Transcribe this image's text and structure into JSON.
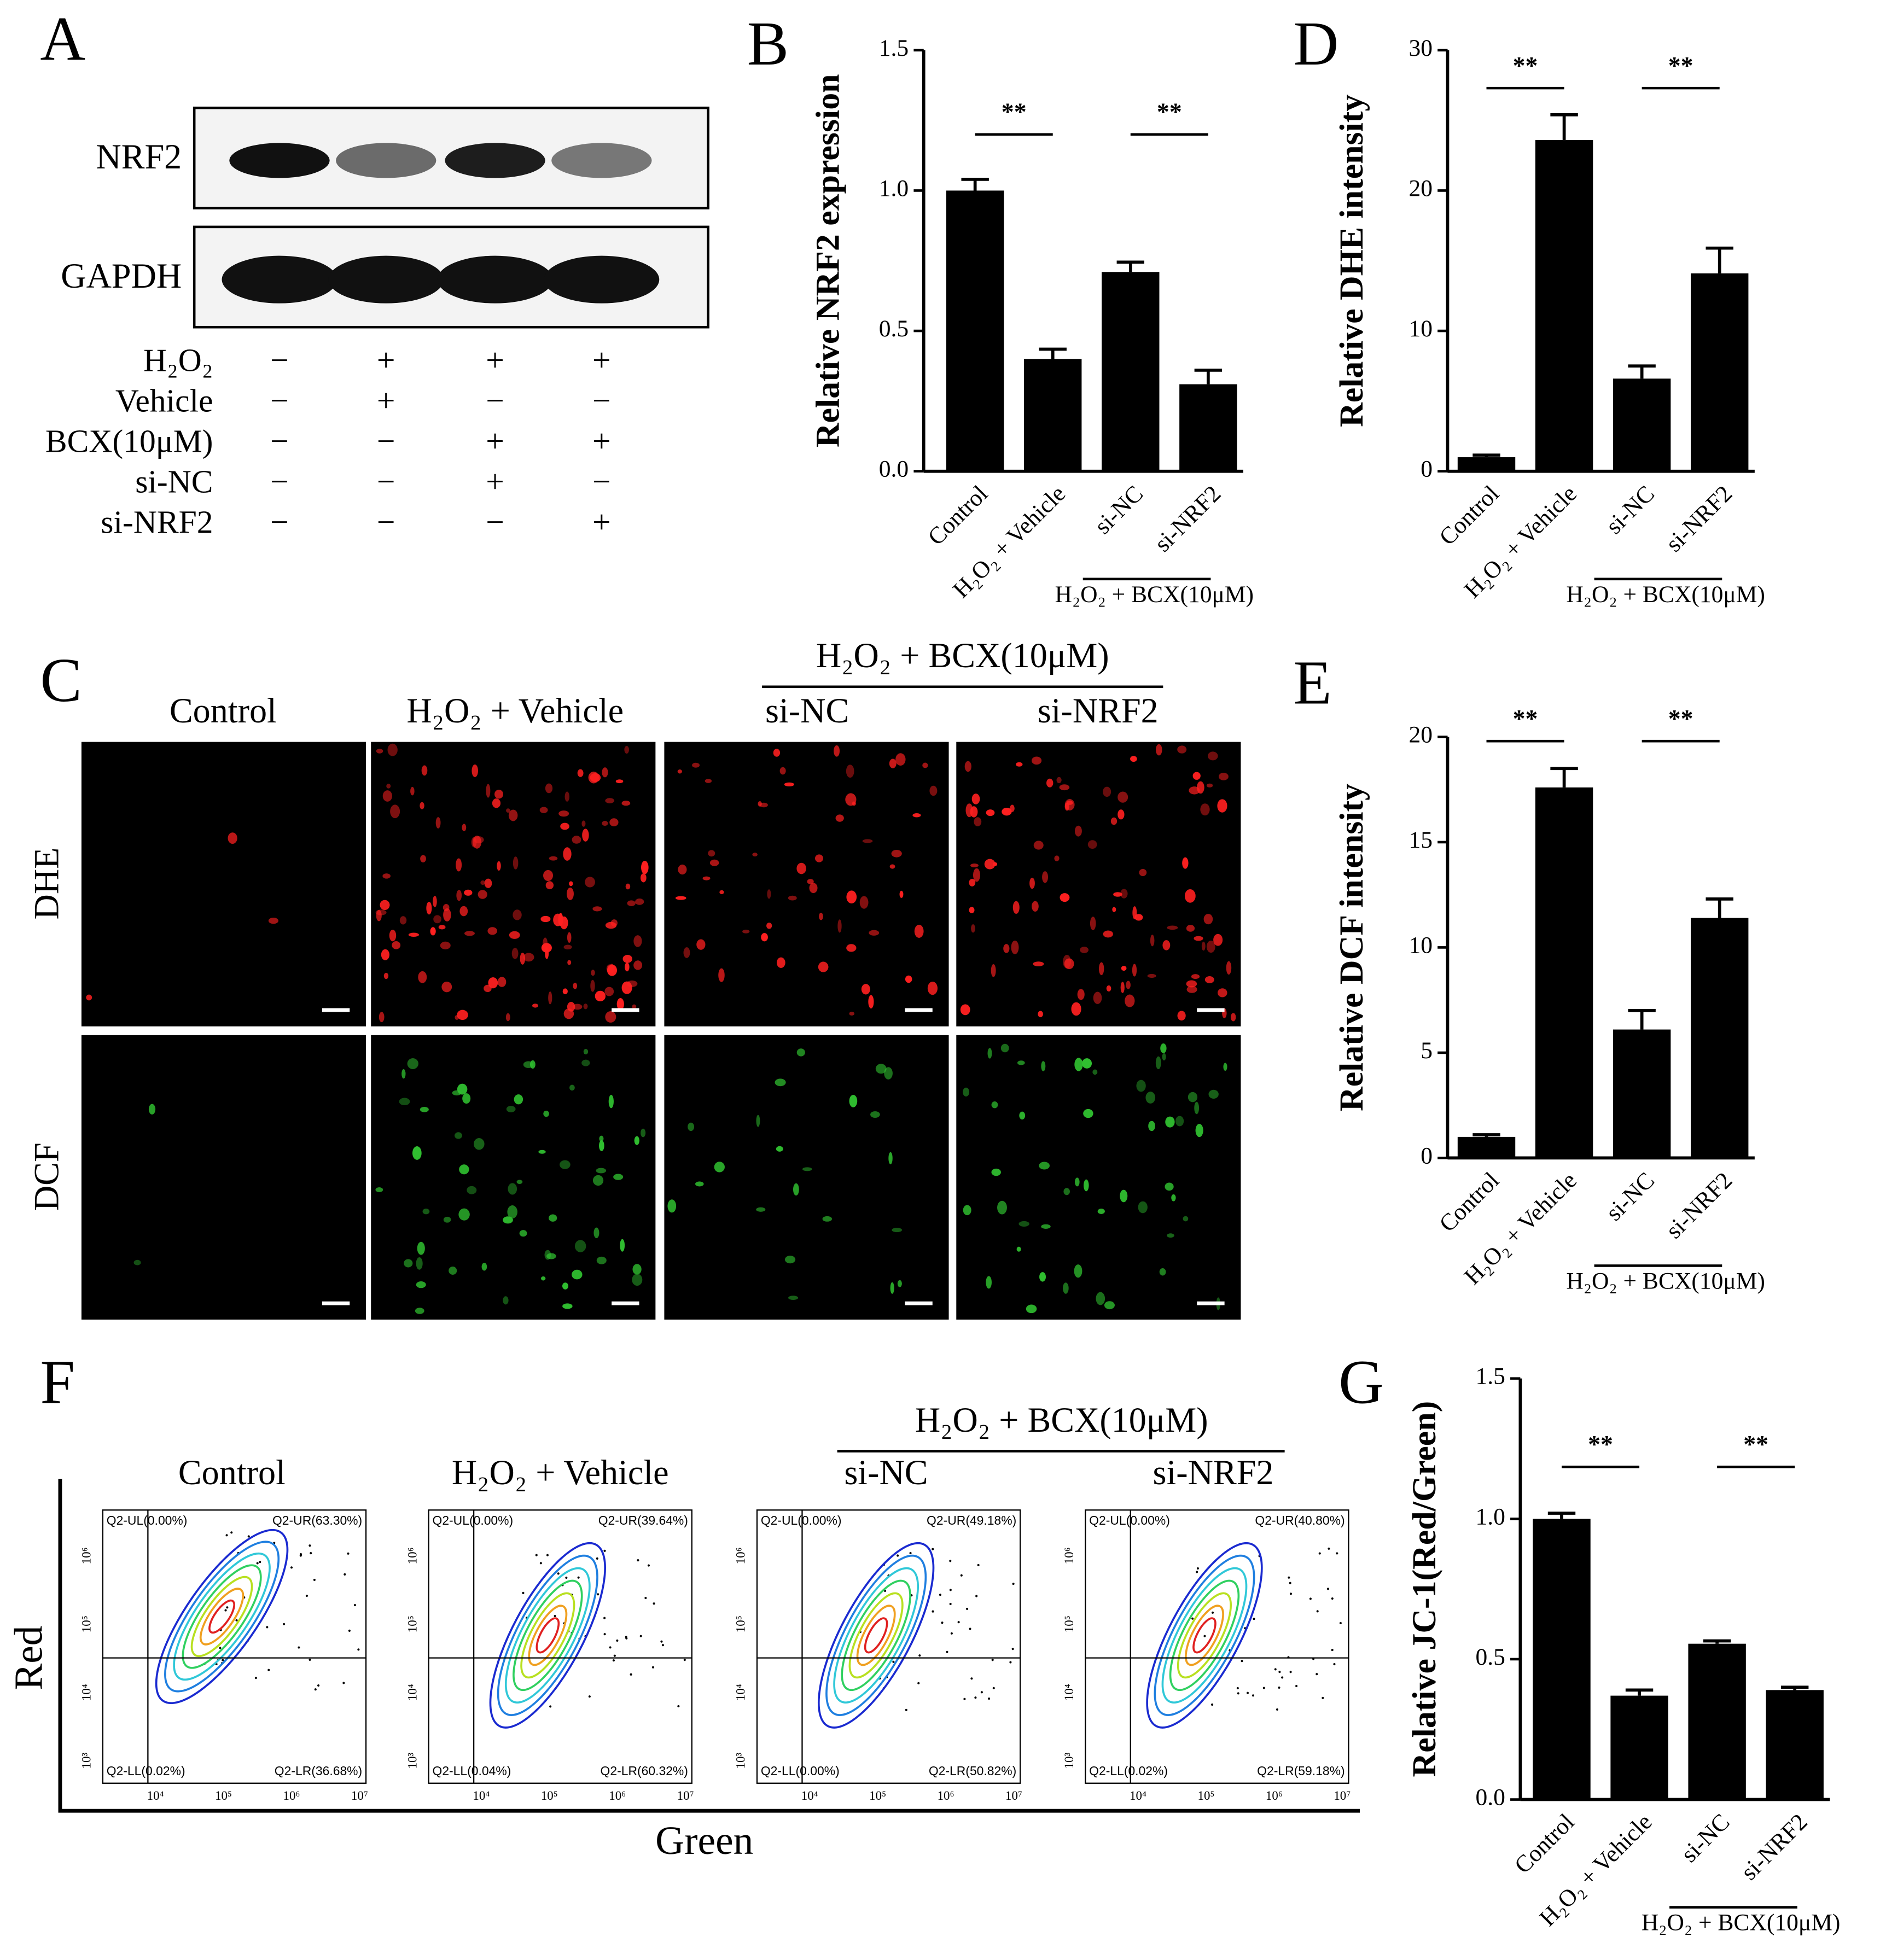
{
  "panel_labels": [
    "A",
    "B",
    "C",
    "D",
    "E",
    "F",
    "G"
  ],
  "western_blot": {
    "bands": [
      "NRF2",
      "GAPDH"
    ],
    "treatments": [
      {
        "label": "H₂O₂",
        "signs": [
          "−",
          "+",
          "+",
          "+"
        ]
      },
      {
        "label": "Vehicle",
        "signs": [
          "−",
          "+",
          "−",
          "−"
        ]
      },
      {
        "label": "BCX(10μM)",
        "signs": [
          "−",
          "−",
          "+",
          "+"
        ]
      },
      {
        "label": "si-NC",
        "signs": [
          "−",
          "−",
          "+",
          "−"
        ]
      },
      {
        "label": "si-NRF2",
        "signs": [
          "−",
          "−",
          "−",
          "+"
        ]
      }
    ]
  },
  "microscopy": {
    "columns": [
      "Control",
      "H₂O₂ + Vehicle",
      "si-NC",
      "si-NRF2"
    ],
    "group": "H₂O₂ + BCX(10μM)",
    "rows": [
      "DHE",
      "DCF"
    ]
  },
  "flow_cytometry": {
    "columns": [
      "Control",
      "H₂O₂ + Vehicle",
      "si-NC",
      "si-NRF2"
    ],
    "group": "H₂O₂ + BCX(10μM)",
    "x_label": "Green",
    "y_label": "Red",
    "xticks": [
      "10⁴",
      "10⁵",
      "10⁶",
      "10⁷"
    ],
    "yticks": [
      "10³",
      "10⁴",
      "10⁵",
      "10⁶"
    ],
    "plots": [
      {
        "UL": "Q2-UL(0.00%)",
        "UR": "Q2-UR(63.30%)",
        "LL": "Q2-LL(0.02%)",
        "LR": "Q2-LR(36.68%)"
      },
      {
        "UL": "Q2-UL(0.00%)",
        "UR": "Q2-UR(39.64%)",
        "LL": "Q2-LL(0.04%)",
        "LR": "Q2-LR(60.32%)"
      },
      {
        "UL": "Q2-UL(0.00%)",
        "UR": "Q2-UR(49.18%)",
        "LL": "Q2-LL(0.00%)",
        "LR": "Q2-LR(50.82%)"
      },
      {
        "UL": "Q2-UL(0.00%)",
        "UR": "Q2-UR(40.80%)",
        "LL": "Q2-LL(0.02%)",
        "LR": "Q2-LR(59.18%)"
      }
    ]
  },
  "chart_data": [
    {
      "type": "bar",
      "y_label": "Relative NRF2 expression",
      "color": "#000000",
      "categories": [
        "Control",
        "H₂O₂ + Vehicle",
        "si-NC",
        "si-NRF2"
      ],
      "group_label": "H₂O₂ + BCX(10μM)",
      "values": [
        1.0,
        0.4,
        0.71,
        0.31
      ],
      "errors": [
        0.04,
        0.035,
        0.035,
        0.05
      ],
      "ylim": [
        0,
        1.5
      ],
      "yticks": [
        {
          "value": 0,
          "label": "0.0"
        },
        0.5,
        {
          "value": 1,
          "label": "1.0"
        },
        1.5
      ],
      "annotations": [
        "**",
        "**"
      ]
    },
    {
      "type": "bar",
      "y_label": "Relative DHE intensity",
      "color": "#000000",
      "categories": [
        "Control",
        "H₂O₂ + Vehicle",
        "si-NC",
        "si-NRF2"
      ],
      "group_label": "H₂O₂ + BCX(10μM)",
      "values": [
        1.0,
        23.6,
        6.6,
        14.1
      ],
      "errors": [
        0.15,
        1.8,
        0.9,
        1.8
      ],
      "ylim": [
        0,
        30
      ],
      "yticks": [
        0,
        10,
        20,
        30
      ],
      "annotations": [
        "**",
        "**"
      ]
    },
    {
      "type": "bar",
      "y_label": "Relative DCF intensity",
      "color": "#000000",
      "categories": [
        "Control",
        "H₂O₂ + Vehicle",
        "si-NC",
        "si-NRF2"
      ],
      "group_label": "H₂O₂ + BCX(10μM)",
      "values": [
        1.0,
        17.6,
        6.1,
        11.4
      ],
      "errors": [
        0.1,
        0.9,
        0.9,
        0.9
      ],
      "ylim": [
        0,
        20
      ],
      "yticks": [
        0,
        5,
        10,
        15,
        20
      ],
      "annotations": [
        "**",
        "**"
      ]
    },
    {
      "type": "bar",
      "y_label": "Relative JC-1(Red/Green)",
      "color": "#000000",
      "categories": [
        "Control",
        "H₂O₂ + Vehicle",
        "si-NC",
        "si-NRF2"
      ],
      "group_label": "H₂O₂ + BCX(10μM)",
      "values": [
        1.0,
        0.37,
        0.555,
        0.39
      ],
      "errors": [
        0.02,
        0.02,
        0.01,
        0.01
      ],
      "ylim": [
        0,
        1.5
      ],
      "yticks": [
        {
          "value": 0,
          "label": "0.0"
        },
        0.5,
        {
          "value": 1,
          "label": "1.0"
        },
        1.5
      ],
      "annotations": [
        "**",
        "**"
      ]
    }
  ]
}
